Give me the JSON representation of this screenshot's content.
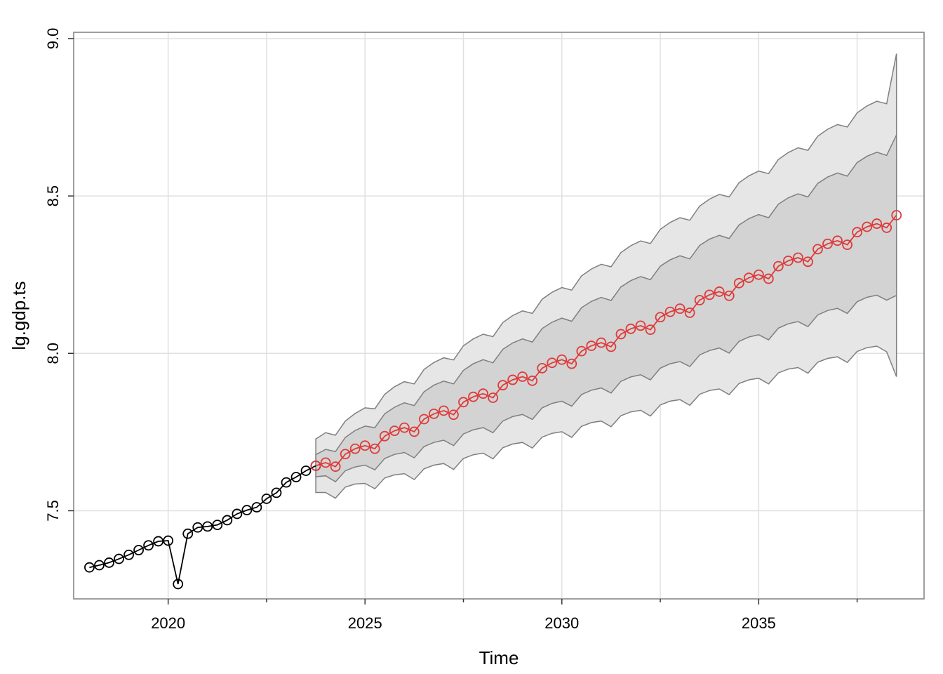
{
  "chart_data": {
    "type": "line",
    "title": "",
    "xlabel": "Time",
    "ylabel": "lg.gdp.ts",
    "xlim": [
      2017.6,
      2039.2
    ],
    "ylim": [
      7.22,
      9.02
    ],
    "xticks": [
      2020,
      2025,
      2030,
      2035
    ],
    "xtick_labels": [
      "2020",
      "2025",
      "2030",
      "2035"
    ],
    "minor_xticks": [
      2017.5,
      2022.5,
      2027.5,
      2032.5,
      2037.5
    ],
    "yticks": [
      7.5,
      8.0,
      8.5,
      9.0
    ],
    "ytick_labels": [
      "7.5",
      "8.0",
      "8.5",
      "9.0"
    ],
    "grid": true,
    "colors": {
      "observed": "#000000",
      "forecast": "#DF3A3A",
      "band_outer": "#E6E6E6",
      "band_inner": "#D3D3D3",
      "band_edge": "#7F7F7F",
      "grid": "#E0E0E0",
      "frame": "#7F7F7F"
    },
    "observed": {
      "x_start": 2018.0,
      "step": 0.25,
      "values": [
        7.32,
        7.327,
        7.335,
        7.347,
        7.36,
        7.375,
        7.39,
        7.403,
        7.405,
        7.267,
        7.427,
        7.447,
        7.45,
        7.455,
        7.47,
        7.49,
        7.502,
        7.511,
        7.538,
        7.557,
        7.59,
        7.607,
        7.627,
        7.643
      ]
    },
    "forecast": {
      "x_start": 2023.75,
      "step": 0.25,
      "mean": [
        7.643,
        7.653,
        7.64,
        7.68,
        7.697,
        7.707,
        7.697,
        7.737,
        7.754,
        7.764,
        7.751,
        7.791,
        7.808,
        7.818,
        7.805,
        7.845,
        7.862,
        7.872,
        7.859,
        7.899,
        7.916,
        7.926,
        7.913,
        7.953,
        7.97,
        7.98,
        7.967,
        8.007,
        8.024,
        8.034,
        8.021,
        8.061,
        8.078,
        8.088,
        8.075,
        8.115,
        8.132,
        8.142,
        8.129,
        8.169,
        8.186,
        8.196,
        8.183,
        8.223,
        8.24,
        8.25,
        8.237,
        8.277,
        8.294,
        8.304,
        8.291,
        8.331,
        8.348,
        8.358,
        8.345,
        8.385,
        8.402,
        8.412,
        8.399,
        8.439
      ],
      "band80_halfwidth": [
        0.035,
        0.042,
        0.048,
        0.053,
        0.058,
        0.062,
        0.067,
        0.071,
        0.075,
        0.079,
        0.083,
        0.087,
        0.091,
        0.094,
        0.098,
        0.101,
        0.105,
        0.108,
        0.111,
        0.114,
        0.117,
        0.12,
        0.123,
        0.126,
        0.129,
        0.132,
        0.135,
        0.138,
        0.141,
        0.144,
        0.147,
        0.15,
        0.153,
        0.156,
        0.159,
        0.162,
        0.165,
        0.168,
        0.171,
        0.174,
        0.177,
        0.179,
        0.182,
        0.185,
        0.188,
        0.191,
        0.194,
        0.197,
        0.2,
        0.203,
        0.206,
        0.209,
        0.212,
        0.215,
        0.218,
        0.221,
        0.224,
        0.227,
        0.23,
        0.255
      ],
      "band95_halfwidth": [
        0.085,
        0.095,
        0.1,
        0.105,
        0.112,
        0.12,
        0.127,
        0.133,
        0.14,
        0.146,
        0.152,
        0.158,
        0.163,
        0.168,
        0.174,
        0.179,
        0.184,
        0.189,
        0.194,
        0.199,
        0.204,
        0.209,
        0.214,
        0.219,
        0.224,
        0.229,
        0.234,
        0.239,
        0.244,
        0.249,
        0.254,
        0.259,
        0.264,
        0.269,
        0.274,
        0.279,
        0.284,
        0.289,
        0.294,
        0.299,
        0.304,
        0.309,
        0.314,
        0.319,
        0.324,
        0.329,
        0.334,
        0.339,
        0.344,
        0.349,
        0.354,
        0.359,
        0.364,
        0.369,
        0.374,
        0.379,
        0.384,
        0.389,
        0.394,
        0.513
      ]
    }
  }
}
